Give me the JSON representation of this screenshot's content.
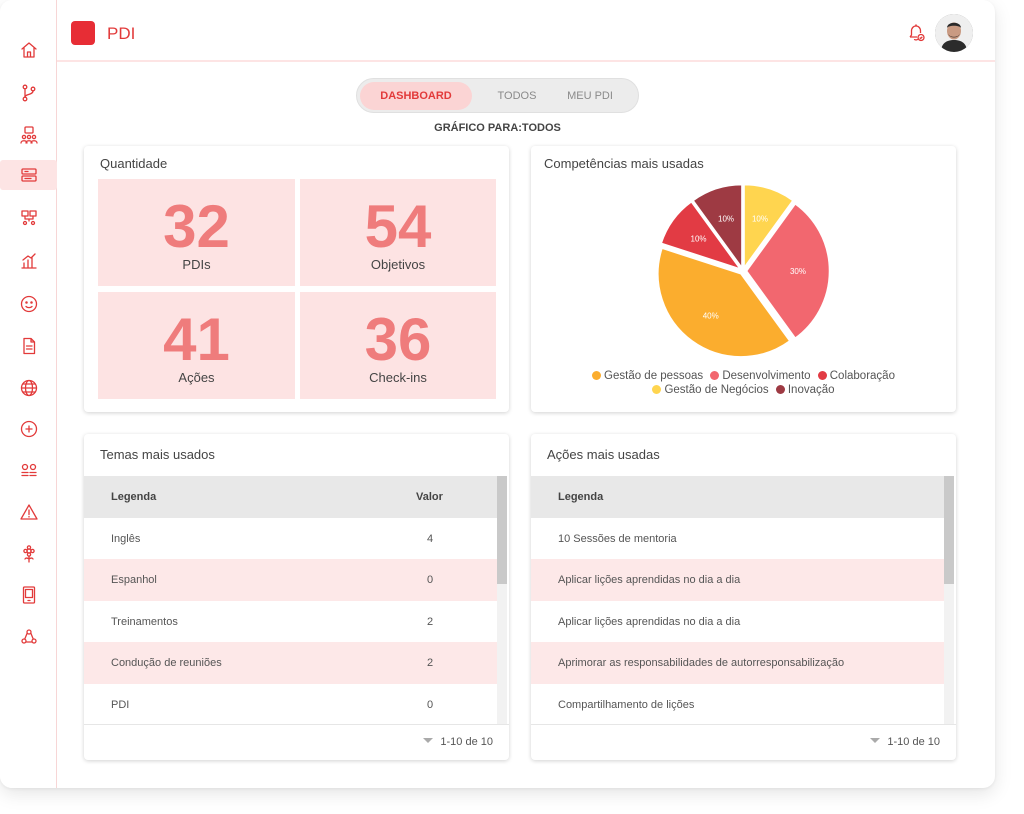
{
  "header": {
    "title": "PDI"
  },
  "tabs": [
    {
      "label": "DASHBOARD",
      "active": true
    },
    {
      "label": "TODOS",
      "active": false
    },
    {
      "label": "MEU PDI",
      "active": false
    }
  ],
  "graph_for": "GRÁFICO PARA:TODOS",
  "quantidade": {
    "title": "Quantidade",
    "kpis": [
      {
        "value": "32",
        "label": "PDIs"
      },
      {
        "value": "54",
        "label": "Objetivos"
      },
      {
        "value": "41",
        "label": "Ações"
      },
      {
        "value": "36",
        "label": "Check-ins"
      }
    ]
  },
  "competencias": {
    "title": "Competências mais usadas",
    "legend": [
      "Gestão de pessoas",
      "Desenvolvimento",
      "Colaboração",
      "Gestão de Negócios",
      "Inovação"
    ]
  },
  "chart_data": {
    "type": "pie",
    "title": "Competências mais usadas",
    "slices": [
      {
        "name": "Gestão de Negócios",
        "value": 10,
        "label": "10%",
        "color": "#ffd54f"
      },
      {
        "name": "Desenvolvimento",
        "value": 30,
        "label": "30%",
        "color": "#f2676f"
      },
      {
        "name": "Gestão de pessoas",
        "value": 40,
        "label": "40%",
        "color": "#fbad2e"
      },
      {
        "name": "Colaboração",
        "value": 10,
        "label": "10%",
        "color": "#e23b44"
      },
      {
        "name": "Inovação",
        "value": 10,
        "label": "10%",
        "color": "#9e3a43"
      }
    ]
  },
  "temas": {
    "title": "Temas mais usados",
    "columns": [
      "Legenda",
      "Valor"
    ],
    "rows": [
      {
        "legenda": "Inglês",
        "valor": "4"
      },
      {
        "legenda": "Espanhol",
        "valor": "0"
      },
      {
        "legenda": "Treinamentos",
        "valor": "2"
      },
      {
        "legenda": "Condução de reuniões",
        "valor": "2"
      },
      {
        "legenda": "PDI",
        "valor": "0"
      }
    ],
    "pager": "1-10 de 10"
  },
  "acoes": {
    "title": "Ações mais usadas",
    "columns": [
      "Legenda"
    ],
    "rows": [
      "10 Sessões de mentoria",
      "Aplicar lições aprendidas no dia a dia",
      "Aplicar lições aprendidas no dia a dia",
      "Aprimorar as responsabilidades de autorresponsabilização",
      "Compartilhamento de lições"
    ],
    "pager": "1-10 de 10"
  },
  "sidebar": {
    "icons": [
      "home-icon",
      "branch-icon",
      "people-icon",
      "dashboard-icon",
      "org-chart-icon",
      "chart-hand-icon",
      "smiley-icon",
      "document-icon",
      "globe-icon",
      "target-icon",
      "checklist-icon",
      "warning-icon",
      "flower-icon",
      "tablet-icon",
      "recycle-icon"
    ],
    "active_index": 3
  },
  "colors": {
    "accent": "#e23a3a",
    "pink": "#fde3e3",
    "kpi_number": "#ef7c7c"
  }
}
